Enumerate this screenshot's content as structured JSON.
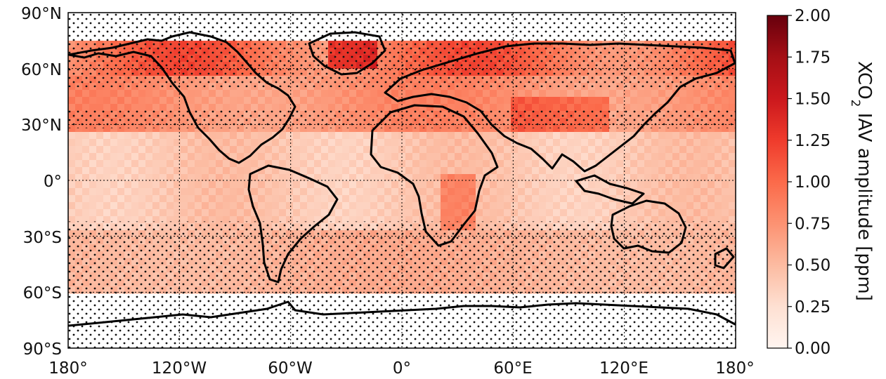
{
  "map": {
    "projection": "PlateCarree",
    "extent": {
      "lon": [
        -180,
        180
      ],
      "lat": [
        -90,
        90
      ]
    },
    "grid": "dotted",
    "x_ticks": [
      {
        "lon": -180,
        "label": "180°"
      },
      {
        "lon": -120,
        "label": "120°W"
      },
      {
        "lon": -60,
        "label": "60°W"
      },
      {
        "lon": 0,
        "label": "0°"
      },
      {
        "lon": 60,
        "label": "60°E"
      },
      {
        "lon": 120,
        "label": "120°E"
      },
      {
        "lon": 180,
        "label": "180°"
      }
    ],
    "y_ticks": [
      {
        "lat": 90,
        "label": "90°N"
      },
      {
        "lat": 60,
        "label": "60°N"
      },
      {
        "lat": 30,
        "label": "30°N"
      },
      {
        "lat": 0,
        "label": "0°"
      },
      {
        "lat": -30,
        "label": "30°S"
      },
      {
        "lat": -60,
        "label": "60°S"
      },
      {
        "lat": -90,
        "label": "90°S"
      }
    ],
    "stippling": "dots mark grid cells that are not significant",
    "colorbar": {
      "label_main": "XCO",
      "label_sub": "2",
      "label_rest": " IAV amplitude [ppm]",
      "min": 0,
      "max": 2,
      "colormap": "Reds",
      "color_low": "#fff5f0",
      "color_high": "#67000d",
      "ticks": [
        "0.00",
        "0.25",
        "0.50",
        "0.75",
        "1.00",
        "1.25",
        "1.50",
        "1.75",
        "2.00"
      ]
    }
  }
}
